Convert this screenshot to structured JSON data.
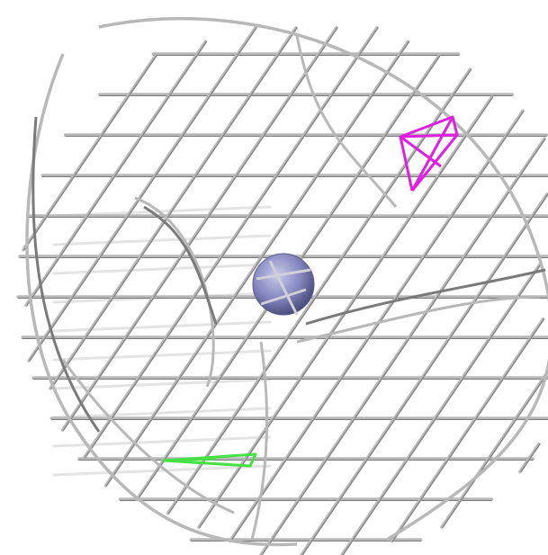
{
  "scene": {
    "background": "#ffffff",
    "lattice_color": "#b8b8b8",
    "lattice_dark": "#7a7a7a",
    "sphere_color": "#8a8cc4",
    "markers": [
      {
        "name": "magenta-tetrahedron",
        "color": "#e020e0"
      },
      {
        "name": "green-tetrahedron",
        "color": "#44e044"
      }
    ]
  }
}
